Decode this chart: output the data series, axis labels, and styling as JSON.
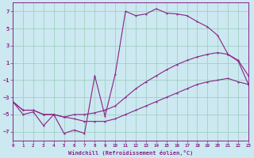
{
  "bg_color": "#cce8f0",
  "grid_color": "#99ccbb",
  "line_color": "#882288",
  "xlim": [
    0,
    23
  ],
  "ylim": [
    -8,
    8
  ],
  "yticks": [
    -7,
    -5,
    -3,
    -1,
    1,
    3,
    5,
    7
  ],
  "xticks": [
    0,
    1,
    2,
    3,
    4,
    5,
    6,
    7,
    8,
    9,
    10,
    11,
    12,
    13,
    14,
    15,
    16,
    17,
    18,
    19,
    20,
    21,
    22,
    23
  ],
  "xlabel": "Windchill (Refroidissement éolien,°C)",
  "line1_x": [
    0,
    1,
    2,
    3,
    4,
    5,
    6,
    7,
    8,
    9,
    10,
    11,
    12,
    13,
    14,
    15,
    16,
    17,
    18,
    19,
    20,
    21,
    22,
    23
  ],
  "line1_y": [
    -3.5,
    -5.0,
    -4.7,
    -6.3,
    -5.0,
    -7.2,
    -6.8,
    -7.2,
    -0.5,
    -5.2,
    -0.3,
    7.0,
    6.5,
    6.7,
    7.3,
    6.8,
    6.7,
    6.5,
    5.8,
    5.2,
    4.2,
    2.0,
    1.3,
    -0.5
  ],
  "line2_x": [
    0,
    1,
    2,
    3,
    4,
    5,
    6,
    7,
    8,
    9,
    10,
    11,
    12,
    13,
    14,
    15,
    16,
    17,
    18,
    19,
    20,
    21,
    22,
    23
  ],
  "line2_y": [
    -3.5,
    -4.5,
    -4.5,
    -5.0,
    -5.0,
    -5.3,
    -5.5,
    -5.8,
    -5.8,
    -5.8,
    -5.5,
    -5.0,
    -4.5,
    -4.0,
    -3.5,
    -3.0,
    -2.5,
    -2.0,
    -1.5,
    -1.2,
    -1.0,
    -0.8,
    -1.2,
    -1.5
  ],
  "line3_x": [
    0,
    1,
    2,
    3,
    4,
    5,
    6,
    7,
    8,
    9,
    10,
    11,
    12,
    13,
    14,
    15,
    16,
    17,
    18,
    19,
    20,
    21,
    22,
    23
  ],
  "line3_y": [
    -3.5,
    -4.5,
    -4.5,
    -5.0,
    -5.0,
    -5.3,
    -5.0,
    -5.0,
    -4.8,
    -4.5,
    -4.0,
    -3.0,
    -2.0,
    -1.2,
    -0.5,
    0.2,
    0.8,
    1.3,
    1.7,
    2.0,
    2.2,
    2.0,
    1.2,
    -1.5
  ]
}
